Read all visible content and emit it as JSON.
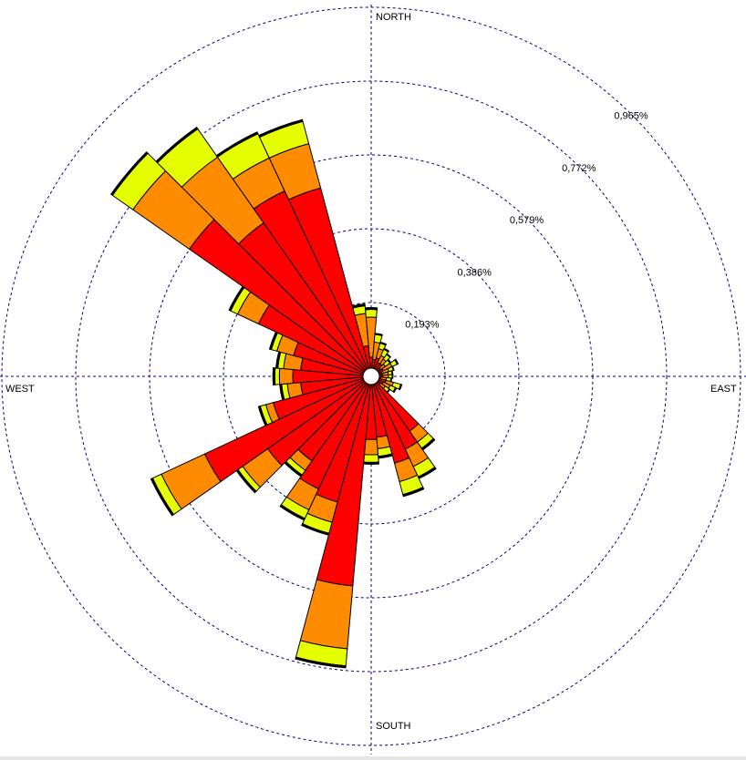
{
  "chart_data": {
    "type": "windrose",
    "direction_labels": {
      "north": "NORTH",
      "south": "SOUTH",
      "east": "EAST",
      "west": "WEST"
    },
    "ring_labels": [
      "0,193%",
      "0,386%",
      "0,579%",
      "0,772%",
      "0,965%"
    ],
    "ring_values": [
      0.193,
      0.386,
      0.579,
      0.772,
      0.965
    ],
    "rmax": 0.965,
    "sector_count": 36,
    "colors": [
      "#ff0000",
      "#ff8c00",
      "#e6ff00",
      "#000000"
    ],
    "sectors": [
      {
        "dir": 0,
        "cum": [
          0.05,
          0.155,
          0.175,
          0.18
        ]
      },
      {
        "dir": 10,
        "cum": [
          0.045,
          0.09,
          0.11,
          0.113
        ]
      },
      {
        "dir": 20,
        "cum": [
          0.05,
          0.075,
          0.09,
          0.093
        ]
      },
      {
        "dir": 30,
        "cum": [
          0.04,
          0.06,
          0.078,
          0.081
        ]
      },
      {
        "dir": 40,
        "cum": [
          0.04,
          0.055,
          0.07,
          0.072
        ]
      },
      {
        "dir": 50,
        "cum": [
          0.03,
          0.045,
          0.06,
          0.063
        ]
      },
      {
        "dir": 60,
        "cum": [
          0.035,
          0.06,
          0.075,
          0.078
        ]
      },
      {
        "dir": 70,
        "cum": [
          0.03,
          0.048,
          0.06,
          0.062
        ]
      },
      {
        "dir": 80,
        "cum": [
          0.03,
          0.045,
          0.055,
          0.057
        ]
      },
      {
        "dir": 90,
        "cum": [
          0.03,
          0.045,
          0.055,
          0.057
        ]
      },
      {
        "dir": 100,
        "cum": [
          0.025,
          0.04,
          0.052,
          0.054
        ]
      },
      {
        "dir": 110,
        "cum": [
          0.04,
          0.06,
          0.08,
          0.083
        ]
      },
      {
        "dir": 120,
        "cum": [
          0.035,
          0.055,
          0.07,
          0.073
        ]
      },
      {
        "dir": 130,
        "cum": [
          0.03,
          0.045,
          0.058,
          0.06
        ]
      },
      {
        "dir": 140,
        "cum": [
          0.175,
          0.21,
          0.23,
          0.235
        ]
      },
      {
        "dir": 150,
        "cum": [
          0.21,
          0.26,
          0.29,
          0.295
        ]
      },
      {
        "dir": 160,
        "cum": [
          0.235,
          0.285,
          0.32,
          0.325
        ]
      },
      {
        "dir": 170,
        "cum": [
          0.16,
          0.19,
          0.21,
          0.215
        ]
      },
      {
        "dir": 180,
        "cum": [
          0.165,
          0.205,
          0.225,
          0.23
        ]
      },
      {
        "dir": 190,
        "cum": [
          0.55,
          0.715,
          0.76,
          0.765
        ]
      },
      {
        "dir": 200,
        "cum": [
          0.34,
          0.395,
          0.425,
          0.43
        ]
      },
      {
        "dir": 210,
        "cum": [
          0.325,
          0.385,
          0.41,
          0.415
        ]
      },
      {
        "dir": 220,
        "cum": [
          0.27,
          0.3,
          0.315,
          0.32
        ]
      },
      {
        "dir": 230,
        "cum": [
          0.33,
          0.41,
          0.425,
          0.43
        ]
      },
      {
        "dir": 240,
        "cum": [
          0.48,
          0.605,
          0.63,
          0.635
        ]
      },
      {
        "dir": 250,
        "cum": [
          0.265,
          0.285,
          0.3,
          0.305
        ]
      },
      {
        "dir": 260,
        "cum": [
          0.185,
          0.22,
          0.235,
          0.24
        ]
      },
      {
        "dir": 270,
        "cum": [
          0.205,
          0.24,
          0.252,
          0.257
        ]
      },
      {
        "dir": 280,
        "cum": [
          0.185,
          0.23,
          0.245,
          0.25
        ]
      },
      {
        "dir": 290,
        "cum": [
          0.21,
          0.255,
          0.27,
          0.275
        ]
      },
      {
        "dir": 300,
        "cum": [
          0.325,
          0.385,
          0.405,
          0.41
        ]
      },
      {
        "dir": 310,
        "cum": [
          0.58,
          0.76,
          0.825,
          0.83
        ]
      },
      {
        "dir": 320,
        "cum": [
          0.49,
          0.7,
          0.79,
          0.795
        ]
      },
      {
        "dir": 330,
        "cum": [
          0.535,
          0.63,
          0.7,
          0.705
        ]
      },
      {
        "dir": 340,
        "cum": [
          0.51,
          0.63,
          0.69,
          0.695
        ]
      },
      {
        "dir": 350,
        "cum": [
          0.08,
          0.165,
          0.185,
          0.19
        ]
      }
    ]
  }
}
